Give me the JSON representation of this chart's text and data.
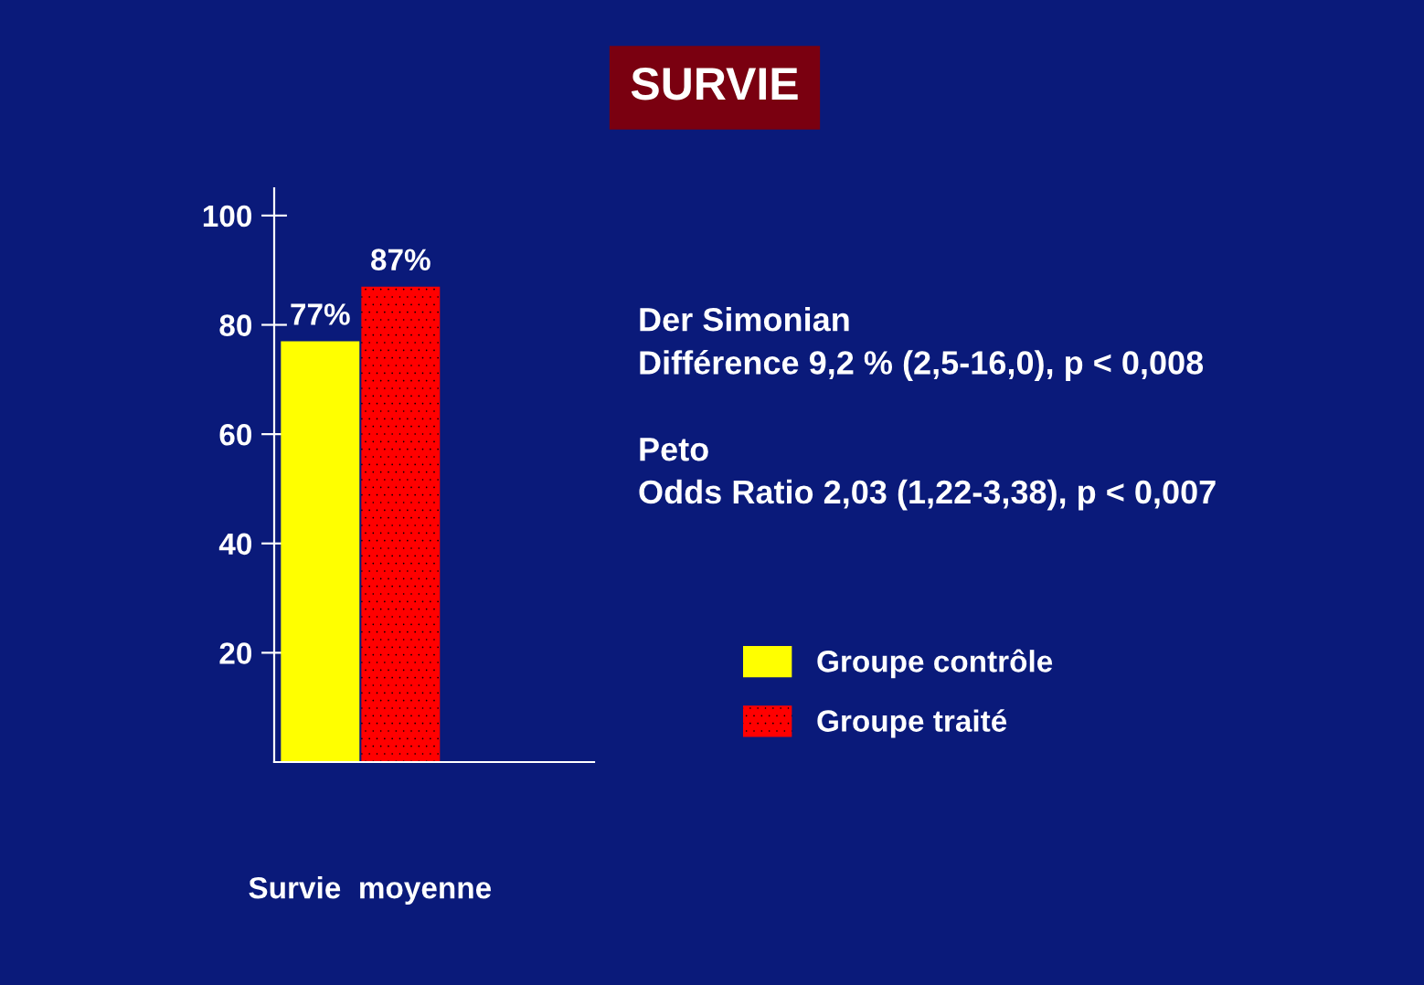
{
  "chart_data": {
    "type": "bar",
    "title": "SURVIE",
    "categories": [
      "Survie  moyenne"
    ],
    "series": [
      {
        "name": "Groupe contrôle",
        "color": "#ffff00",
        "values": [
          77
        ],
        "value_labels": [
          "77%"
        ]
      },
      {
        "name": "Groupe traité",
        "color": "#ff0000",
        "values": [
          87
        ],
        "value_labels": [
          "87%"
        ]
      }
    ],
    "ylim": [
      0,
      105
    ],
    "yticks": [
      20,
      40,
      60,
      80,
      100
    ],
    "grid": false,
    "legend": "right",
    "annotations": [
      "Der Simonian\nDifférence 9,2 % (2,5-16,0), p < 0,008",
      "Peto\nOdds Ratio 2,03 (1,22-3,38), p < 0,007"
    ]
  }
}
